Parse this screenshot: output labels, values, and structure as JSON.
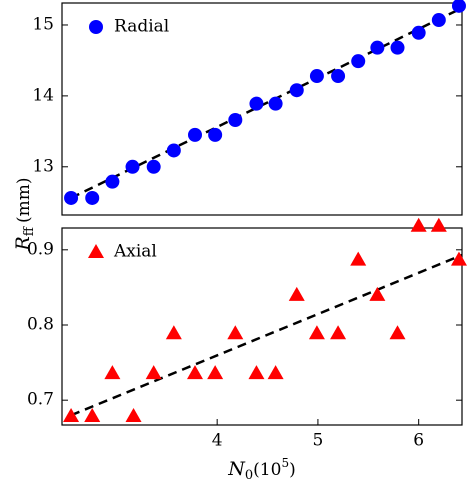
{
  "chart_data": [
    {
      "type": "scatter",
      "xlim": [
        2.46,
        6.43
      ],
      "ylim": [
        12.32,
        15.31
      ],
      "yticks": [
        13,
        14,
        15
      ],
      "legend": "upper left",
      "series": [
        {
          "name": "Radial",
          "color": "#0000ff",
          "marker": "circle",
          "x": [
            2.55,
            2.76,
            2.96,
            3.16,
            3.37,
            3.57,
            3.78,
            3.98,
            4.18,
            4.39,
            4.58,
            4.79,
            4.99,
            5.2,
            5.4,
            5.59,
            5.79,
            6.0,
            6.2,
            6.4
          ],
          "values": [
            12.56,
            12.56,
            12.79,
            13.0,
            13.0,
            13.23,
            13.45,
            13.45,
            13.66,
            13.89,
            13.89,
            14.08,
            14.28,
            14.28,
            14.49,
            14.68,
            14.68,
            14.89,
            15.07,
            15.27
          ]
        }
      ],
      "fit": {
        "color": "#000000",
        "x": [
          2.55,
          6.43
        ],
        "values": [
          12.56,
          15.24
        ]
      }
    },
    {
      "type": "scatter",
      "xlim": [
        2.46,
        6.43
      ],
      "ylim": [
        0.667,
        0.929
      ],
      "yticks": [
        0.7,
        0.8,
        0.9
      ],
      "xticks": [
        4,
        5,
        6
      ],
      "legend": "upper left",
      "series": [
        {
          "name": "Axial",
          "color": "#ff0000",
          "marker": "triangle",
          "x": [
            2.55,
            2.76,
            2.96,
            3.17,
            3.37,
            3.57,
            3.78,
            3.98,
            4.18,
            4.39,
            4.58,
            4.79,
            4.99,
            5.2,
            5.4,
            5.59,
            5.79,
            6.0,
            6.2,
            6.4
          ],
          "values": [
            0.679,
            0.679,
            0.736,
            0.679,
            0.736,
            0.789,
            0.736,
            0.736,
            0.789,
            0.736,
            0.736,
            0.84,
            0.789,
            0.789,
            0.887,
            0.84,
            0.789,
            0.932,
            0.932,
            0.887
          ]
        }
      ],
      "fit": {
        "color": "#000000",
        "x": [
          2.55,
          6.43
        ],
        "values": [
          0.68,
          0.893
        ]
      }
    }
  ],
  "ylabel": {
    "main": "R",
    "sub": "ff",
    "unit": "(mm)"
  },
  "xlabel": {
    "main": "N",
    "sub": "0",
    "open": "(10",
    "sup": "5",
    "close": ")"
  }
}
